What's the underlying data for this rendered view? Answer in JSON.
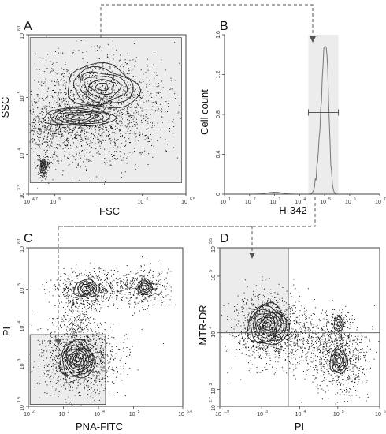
{
  "chart_data": [
    {
      "type": "scatter",
      "panel": "A",
      "xlabel": "FSC",
      "ylabel": "SSC",
      "x_scale": "log",
      "y_scale": "log",
      "x_ticks": [
        {
          "base": "10",
          "exp": "4.7",
          "pos": 4.7
        },
        {
          "base": "10",
          "exp": "5",
          "pos": 5
        },
        {
          "base": "10",
          "exp": "6",
          "pos": 6
        },
        {
          "base": "10",
          "exp": "6.5",
          "pos": 6.5
        }
      ],
      "y_ticks": [
        {
          "base": "10",
          "exp": "3.3",
          "pos": 3.3
        },
        {
          "base": "10",
          "exp": "4",
          "pos": 4
        },
        {
          "base": "10",
          "exp": "5",
          "pos": 5
        },
        {
          "base": "10",
          "exp": "6.1",
          "pos": 6.1
        }
      ],
      "xlim": [
        4.7,
        6.5
      ],
      "ylim": [
        3.3,
        6.1
      ],
      "gate": {
        "x": [
          4.72,
          6.45
        ],
        "y": [
          3.5,
          6.05
        ]
      }
    },
    {
      "type": "line",
      "panel": "B",
      "xlabel": "H-342",
      "ylabel": "Cell count",
      "x_scale": "log",
      "x_ticks": [
        {
          "base": "10",
          "exp": "1",
          "pos": 1
        },
        {
          "base": "10",
          "exp": "2",
          "pos": 2
        },
        {
          "base": "10",
          "exp": "3",
          "pos": 3
        },
        {
          "base": "10",
          "exp": "4",
          "pos": 4
        },
        {
          "base": "10",
          "exp": "5",
          "pos": 5
        },
        {
          "base": "10",
          "exp": "6",
          "pos": 6
        },
        {
          "base": "10",
          "exp": "7.2",
          "pos": 7.2
        }
      ],
      "y_ticks": [
        "0",
        "0.4",
        "0.8",
        "1.2",
        "1.6"
      ],
      "xlim": [
        1,
        7.2
      ],
      "ylim": [
        0,
        1.6
      ],
      "gate": {
        "x": [
          4.35,
          5.55
        ]
      },
      "marker": {
        "x": [
          4.35,
          5.55
        ],
        "y": 0.82
      }
    },
    {
      "type": "scatter",
      "panel": "C",
      "xlabel": "PNA-FITC",
      "ylabel": "PI",
      "x_scale": "log",
      "y_scale": "log",
      "x_ticks": [
        {
          "base": "10",
          "exp": "2",
          "pos": 2
        },
        {
          "base": "10",
          "exp": "3",
          "pos": 3
        },
        {
          "base": "10",
          "exp": "4",
          "pos": 4
        },
        {
          "base": "10",
          "exp": "5",
          "pos": 5
        },
        {
          "base": "10",
          "exp": "6.4",
          "pos": 6.4
        }
      ],
      "y_ticks": [
        {
          "base": "10",
          "exp": "1.9",
          "pos": 1.9
        },
        {
          "base": "10",
          "exp": "3",
          "pos": 3
        },
        {
          "base": "10",
          "exp": "4",
          "pos": 4
        },
        {
          "base": "10",
          "exp": "5",
          "pos": 5
        },
        {
          "base": "10",
          "exp": "6.1",
          "pos": 6.1
        }
      ],
      "xlim": [
        2,
        6.4
      ],
      "ylim": [
        1.9,
        6.1
      ],
      "gate": {
        "x": [
          2.05,
          4.2
        ],
        "y": [
          1.95,
          3.8
        ]
      }
    },
    {
      "type": "scatter",
      "panel": "D",
      "xlabel": "PI",
      "ylabel": "MTR-DR",
      "x_scale": "log",
      "y_scale": "log",
      "x_ticks": [
        {
          "base": "10",
          "exp": "1.9",
          "pos": 1.9
        },
        {
          "base": "10",
          "exp": "3",
          "pos": 3
        },
        {
          "base": "10",
          "exp": "4",
          "pos": 4
        },
        {
          "base": "10",
          "exp": "5",
          "pos": 5
        },
        {
          "base": "10",
          "exp": "6.1",
          "pos": 6.1
        }
      ],
      "y_ticks": [
        {
          "base": "10",
          "exp": "2.7",
          "pos": 2.7
        },
        {
          "base": "10",
          "exp": "3",
          "pos": 3
        },
        {
          "base": "10",
          "exp": "4",
          "pos": 4
        },
        {
          "base": "10",
          "exp": "5",
          "pos": 5
        },
        {
          "base": "10",
          "exp": "5.5",
          "pos": 5.5
        }
      ],
      "xlim": [
        1.9,
        6.1
      ],
      "ylim": [
        2.7,
        5.5
      ],
      "gate": {
        "x": [
          1.9,
          3.7
        ],
        "y": [
          4.0,
          5.5
        ]
      },
      "quadrant_lines": {
        "x": 3.7,
        "y": 4.0
      }
    }
  ],
  "colors": {
    "gate_fill": "#ececec",
    "dots": "#111111",
    "contour": "#222222",
    "arrow": "#555555",
    "histogram": "#777777"
  }
}
